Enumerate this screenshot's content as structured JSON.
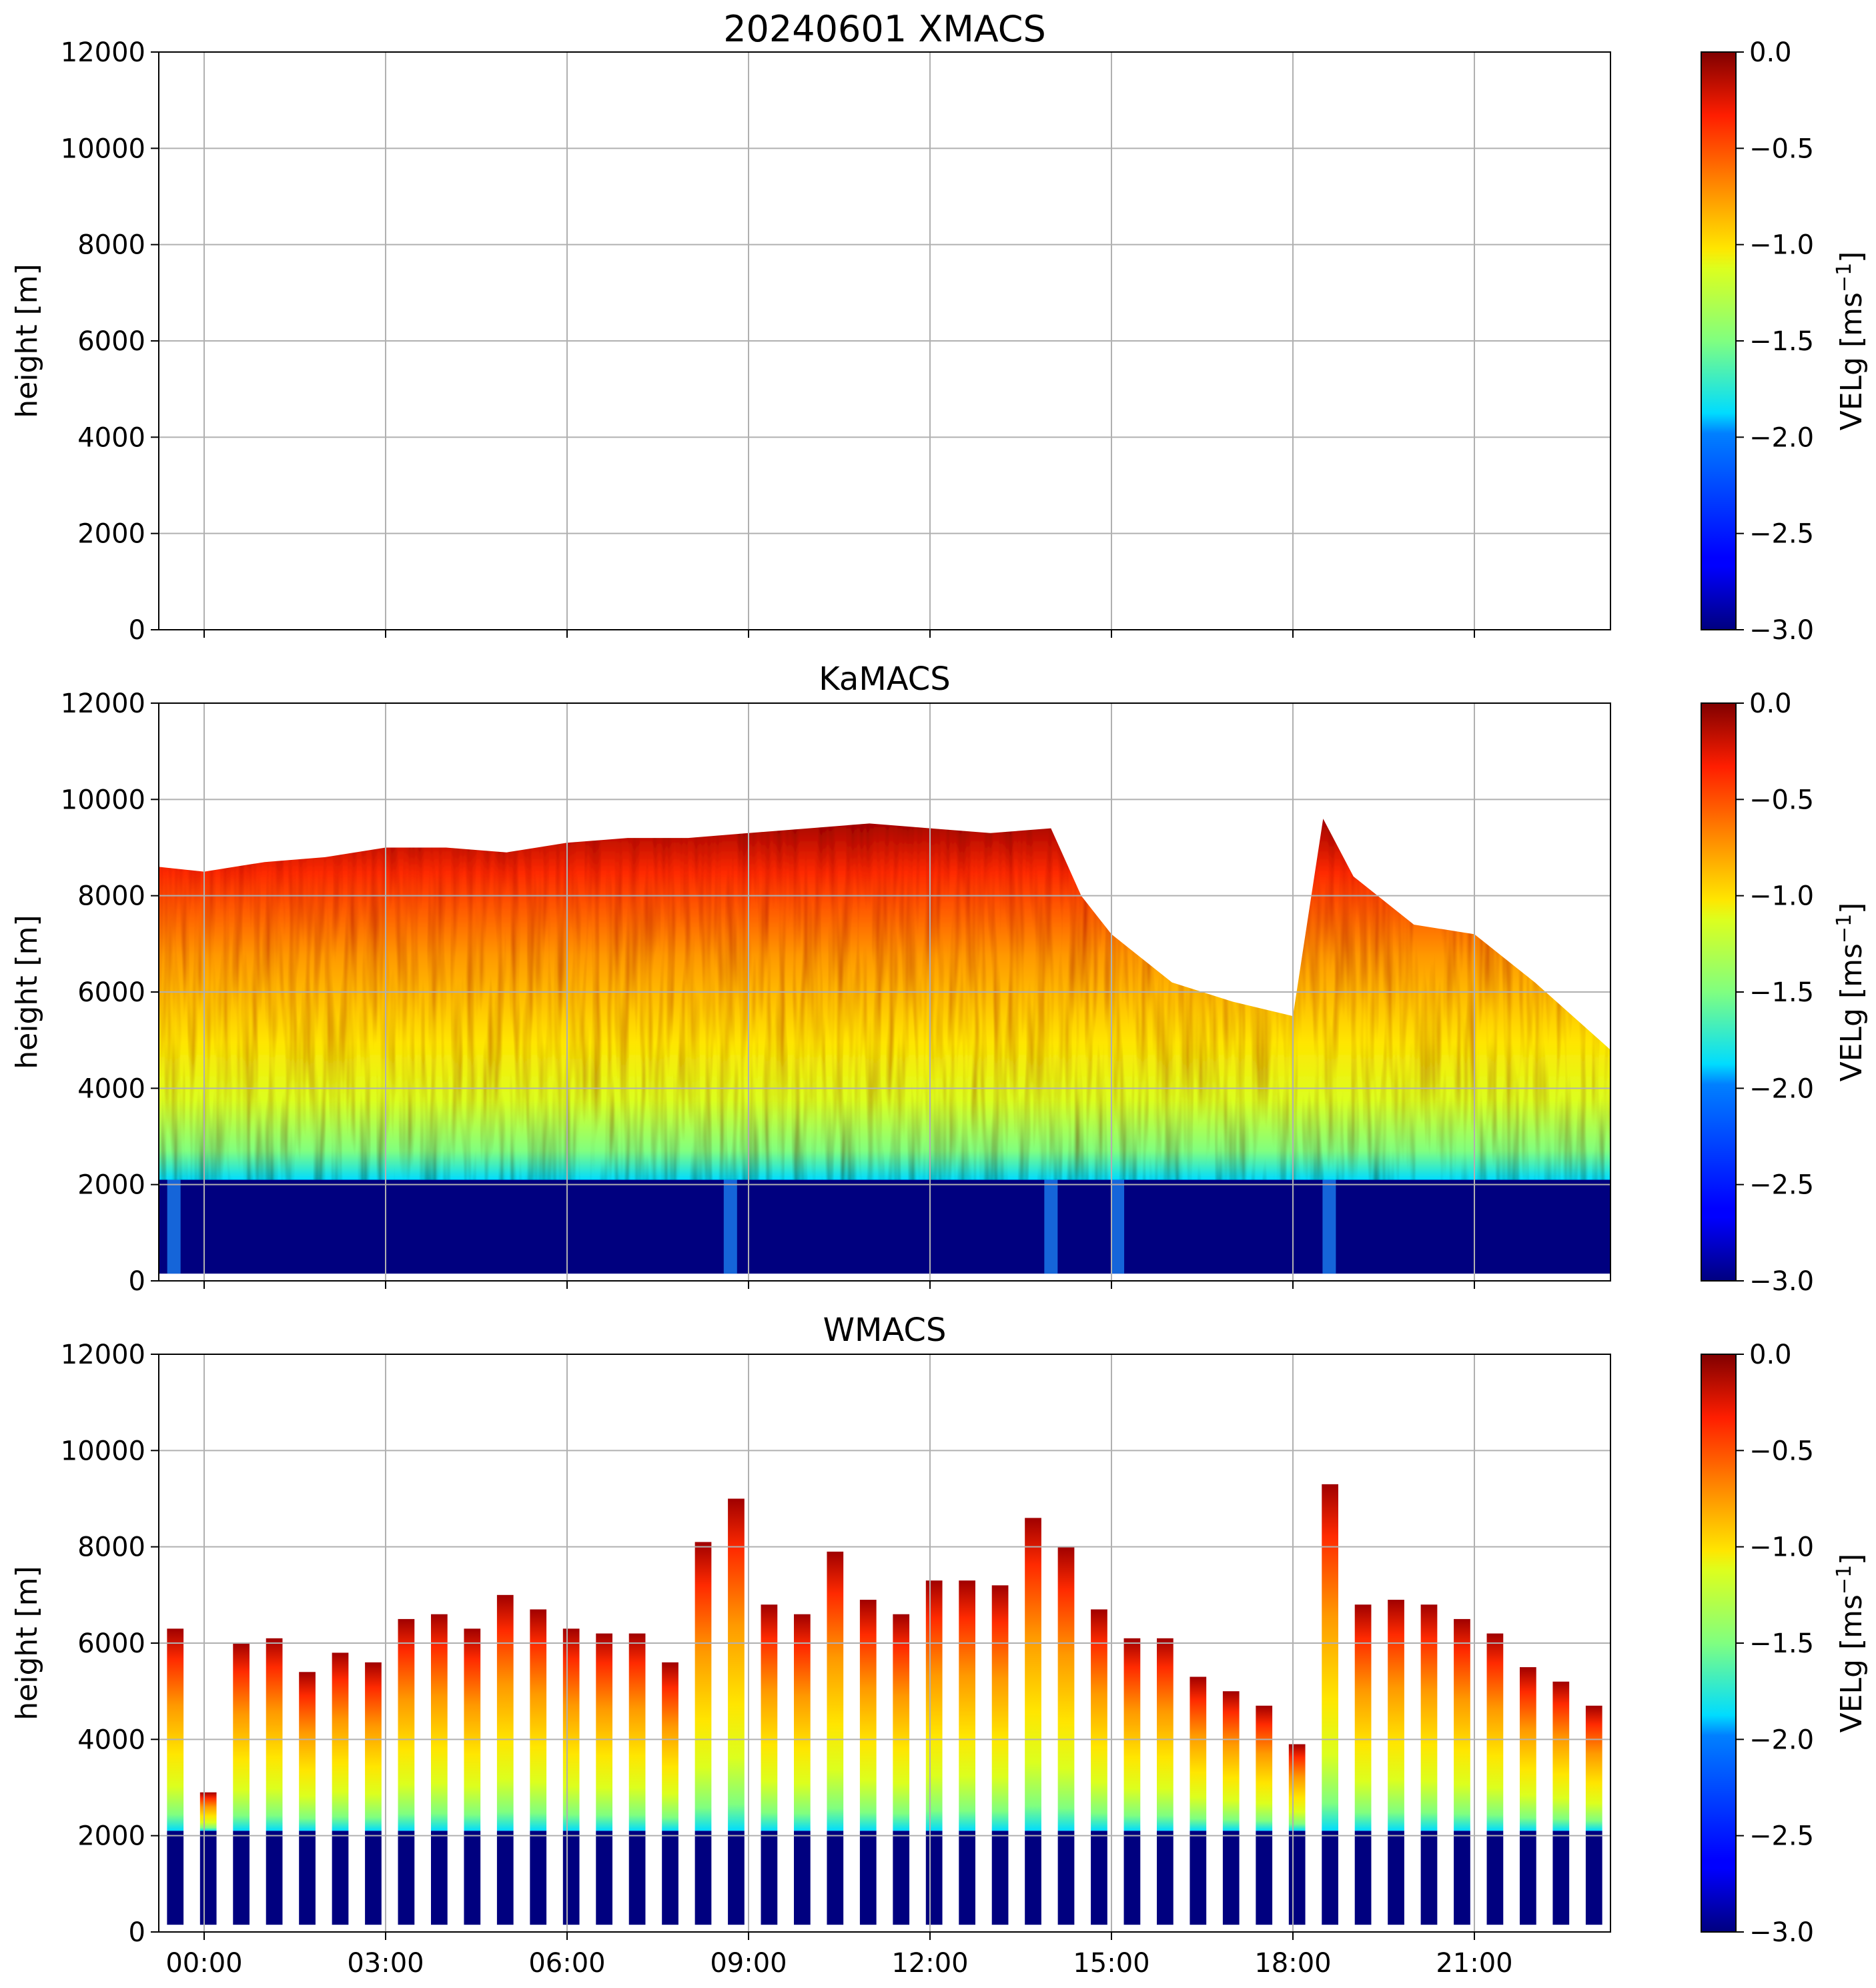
{
  "chart_data": [
    {
      "type": "heatmap",
      "title": "20240601 XMACS",
      "xlabel": "",
      "ylabel": "height [m]",
      "ylim": [
        0,
        12000
      ],
      "yticks": [
        "0",
        "2000",
        "4000",
        "6000",
        "8000",
        "10000",
        "12000"
      ],
      "xlim_hours": [
        -0.75,
        23.25
      ],
      "xticks": [],
      "grid": true,
      "colorbar": {
        "label": "VELg [ms",
        "label_sup": "−1",
        "label_end": "]",
        "range": [
          -3.0,
          0.0
        ],
        "colormap": "jet",
        "ticks": [
          "0.0",
          "−0.5",
          "−1.0",
          "−1.5",
          "−2.0",
          "−2.5",
          "−3.0"
        ]
      },
      "has_data": false
    },
    {
      "type": "heatmap",
      "title": "KaMACS",
      "xlabel": "",
      "ylabel": "height [m]",
      "ylim": [
        0,
        12000
      ],
      "yticks": [
        "0",
        "2000",
        "4000",
        "6000",
        "8000",
        "10000",
        "12000"
      ],
      "xlim_hours": [
        -0.75,
        23.25
      ],
      "xticks": [],
      "grid": true,
      "colorbar": {
        "label": "VELg [ms",
        "label_sup": "−1",
        "label_end": "]",
        "range": [
          -3.0,
          0.0
        ],
        "colormap": "jet",
        "ticks": [
          "0.0",
          "−0.5",
          "−1.0",
          "−1.5",
          "−2.0",
          "−2.5",
          "−3.0"
        ]
      },
      "has_data": true,
      "continuous": true,
      "melting_layer_height_m": 2100,
      "echo_top_profile": {
        "time_hours": [
          -0.75,
          0,
          1,
          2,
          3,
          4,
          5,
          6,
          7,
          8,
          9,
          10,
          11,
          12,
          13,
          14,
          14.5,
          15,
          16,
          17,
          18,
          18.5,
          19,
          20,
          21,
          22,
          23.25
        ],
        "top_m": [
          8600,
          8500,
          8700,
          8800,
          9000,
          9000,
          8900,
          9100,
          9200,
          9200,
          9300,
          9400,
          9500,
          9400,
          9300,
          9400,
          8000,
          7200,
          6200,
          5800,
          5500,
          9600,
          8400,
          7400,
          7200,
          6200,
          4800
        ]
      },
      "fall_streaks_hours": [
        -0.5,
        8.7,
        14.0,
        15.1,
        18.6
      ]
    },
    {
      "type": "heatmap",
      "title": "WMACS",
      "xlabel": "",
      "ylabel": "height [m]",
      "ylim": [
        0,
        12000
      ],
      "yticks": [
        "0",
        "2000",
        "4000",
        "6000",
        "8000",
        "10000",
        "12000"
      ],
      "xlim_hours": [
        -0.75,
        23.25
      ],
      "xticks": [
        "00:00",
        "03:00",
        "06:00",
        "09:00",
        "12:00",
        "15:00",
        "18:00",
        "21:00"
      ],
      "xtick_hours": [
        0,
        3,
        6,
        9,
        12,
        15,
        18,
        21
      ],
      "grid": true,
      "colorbar": {
        "label": "VELg [ms",
        "label_sup": "−1",
        "label_end": "]",
        "range": [
          -3.0,
          0.0
        ],
        "colormap": "jet",
        "ticks": [
          "0.0",
          "−0.5",
          "−1.0",
          "−1.5",
          "−2.0",
          "−2.5",
          "−3.0"
        ]
      },
      "has_data": true,
      "continuous": false,
      "melting_layer_height_m": 2100,
      "scan_tops_m": [
        6300,
        2900,
        6000,
        6100,
        5400,
        5800,
        5600,
        6500,
        6600,
        6300,
        7000,
        6700,
        6300,
        6200,
        6200,
        5600,
        8100,
        9000,
        6800,
        6600,
        7900,
        6900,
        6600,
        7300,
        7300,
        7200,
        8600,
        8000,
        6700,
        6100,
        6100,
        5300,
        5000,
        4700,
        3900,
        9300,
        6800,
        6900,
        6800,
        6500,
        6200,
        5500,
        5200,
        4700
      ]
    }
  ]
}
